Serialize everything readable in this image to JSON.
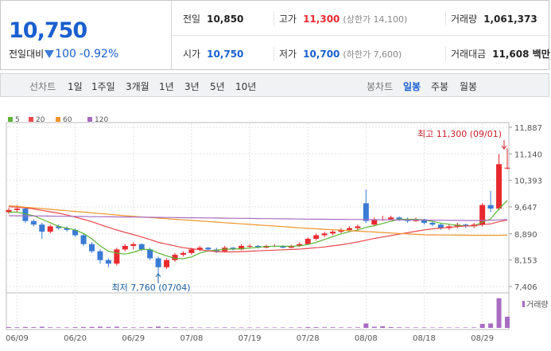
{
  "quote": {
    "price": "10,750",
    "change_label": "전일대비",
    "change": "100",
    "change_pct": "-0.92%"
  },
  "stats": [
    [
      {
        "label": "전일",
        "value": "10,850"
      },
      {
        "label": "고가",
        "value": "11,300",
        "note": "(상한가 14,100)"
      },
      {
        "label": "거래량",
        "value": "1,061,373"
      }
    ],
    [
      {
        "label": "시가",
        "value": "10,750"
      },
      {
        "label": "저가",
        "value": "10,700",
        "note": "(하한가 7,600)"
      },
      {
        "label": "거래대금",
        "value": "11,608 백만"
      }
    ]
  ],
  "tabs": {
    "left": [
      "선차트",
      "1일",
      "1주일",
      "3개월",
      "1년",
      "3년",
      "5년",
      "10년"
    ],
    "right": [
      "봉차트",
      "일봉",
      "주봉",
      "월봉"
    ],
    "selected": "일봉"
  },
  "chart_data": {
    "type": "candlestick",
    "categories": [
      null,
      "06/09",
      null,
      null,
      null,
      null,
      null,
      null,
      "06/20",
      null,
      null,
      null,
      null,
      null,
      null,
      "06/29",
      null,
      null,
      null,
      null,
      null,
      null,
      "07/08",
      null,
      null,
      null,
      null,
      null,
      null,
      "07/19",
      null,
      null,
      null,
      null,
      null,
      null,
      "07/28",
      null,
      null,
      null,
      null,
      null,
      null,
      "08/08",
      null,
      null,
      null,
      null,
      null,
      null,
      "08/18",
      null,
      null,
      null,
      null,
      null,
      null,
      "08/29",
      null,
      null,
      null
    ],
    "open": [
      9500,
      9560,
      9600,
      9250,
      9150,
      8950,
      9100,
      9050,
      9000,
      8850,
      8600,
      8400,
      8150,
      8050,
      8450,
      8550,
      8600,
      8450,
      8200,
      7950,
      8150,
      8300,
      8350,
      8450,
      8500,
      8450,
      8400,
      8500,
      8450,
      8550,
      8550,
      8500,
      8550,
      8550,
      8500,
      8550,
      8600,
      8750,
      8850,
      8900,
      8950,
      9000,
      9050,
      9750,
      9150,
      9300,
      9300,
      9350,
      9300,
      9250,
      9300,
      9200,
      9150,
      9050,
      9100,
      9150,
      9100,
      9150,
      9700,
      9600,
      10750
    ],
    "high": [
      9620,
      9700,
      9620,
      9300,
      9200,
      9150,
      9150,
      9100,
      9050,
      8900,
      8650,
      8450,
      8200,
      8500,
      8600,
      8650,
      8620,
      8500,
      8250,
      8200,
      8350,
      8400,
      8500,
      8550,
      8520,
      8500,
      8550,
      8520,
      8600,
      8600,
      8580,
      8580,
      8600,
      8570,
      8580,
      8650,
      8800,
      8900,
      8950,
      9000,
      9050,
      9100,
      9150,
      10140,
      9350,
      9400,
      9400,
      9380,
      9350,
      9350,
      9320,
      9250,
      9180,
      9150,
      9200,
      9180,
      9200,
      9750,
      10100,
      11140,
      11300
    ],
    "low": [
      9450,
      9500,
      9200,
      9100,
      8750,
      8900,
      9000,
      8950,
      8800,
      8550,
      8350,
      8050,
      7950,
      8000,
      8400,
      8450,
      8400,
      8150,
      7760,
      7900,
      8100,
      8250,
      8300,
      8400,
      8400,
      8350,
      8380,
      8420,
      8430,
      8500,
      8480,
      8480,
      8520,
      8480,
      8480,
      8520,
      8580,
      8700,
      8800,
      8850,
      8900,
      8950,
      9000,
      9200,
      9100,
      9250,
      9280,
      9250,
      9200,
      9230,
      9150,
      9100,
      9000,
      9000,
      9050,
      9050,
      9050,
      9100,
      9500,
      9550,
      10700
    ],
    "close": [
      9560,
      9600,
      9250,
      9150,
      8950,
      9100,
      9050,
      9000,
      8850,
      8600,
      8400,
      8150,
      8050,
      8450,
      8550,
      8600,
      8450,
      8200,
      7950,
      8150,
      8300,
      8350,
      8450,
      8500,
      8450,
      8400,
      8500,
      8450,
      8550,
      8550,
      8500,
      8550,
      8550,
      8500,
      8550,
      8600,
      8750,
      8850,
      8900,
      8950,
      9000,
      9050,
      9100,
      9250,
      9300,
      9300,
      9350,
      9300,
      9250,
      9300,
      9200,
      9150,
      9050,
      9100,
      9150,
      9100,
      9150,
      9700,
      9600,
      10850,
      10750
    ],
    "up_color": "#e8292e",
    "down_color": "#3a7bd5",
    "ma": [
      {
        "name": "5",
        "color": "#5db534",
        "values": [
          9500,
          9500,
          9450,
          9400,
          9300,
          9200,
          9100,
          9050,
          9000,
          8900,
          8750,
          8550,
          8400,
          8350,
          8320,
          8370,
          8450,
          8450,
          8350,
          8270,
          8200,
          8190,
          8240,
          8350,
          8410,
          8430,
          8460,
          8460,
          8470,
          8490,
          8510,
          8530,
          8540,
          8540,
          8540,
          8550,
          8590,
          8650,
          8730,
          8810,
          8890,
          8950,
          9000,
          9070,
          9120,
          9180,
          9240,
          9300,
          9300,
          9300,
          9280,
          9240,
          9190,
          9160,
          9130,
          9110,
          9110,
          9220,
          9310,
          9590,
          9830
        ]
      },
      {
        "name": "20",
        "color": "#e8474a",
        "values": [
          9650,
          9640,
          9620,
          9590,
          9550,
          9510,
          9470,
          9420,
          9360,
          9300,
          9230,
          9150,
          9070,
          9000,
          8930,
          8870,
          8800,
          8730,
          8650,
          8600,
          8550,
          8500,
          8470,
          8440,
          8410,
          8390,
          8380,
          8380,
          8390,
          8400,
          8410,
          8420,
          8430,
          8440,
          8450,
          8460,
          8480,
          8500,
          8520,
          8550,
          8580,
          8620,
          8660,
          8710,
          8760,
          8800,
          8840,
          8880,
          8920,
          8960,
          9000,
          9030,
          9050,
          9070,
          9090,
          9110,
          9120,
          9150,
          9170,
          9230,
          9280
        ]
      },
      {
        "name": "60",
        "color": "#f0952a",
        "values": [
          9680,
          9660,
          9640,
          9620,
          9600,
          9580,
          9560,
          9540,
          9520,
          9500,
          9480,
          9460,
          9440,
          9420,
          9400,
          9380,
          9364,
          9348,
          9332,
          9316,
          9300,
          9284,
          9268,
          9252,
          9236,
          9220,
          9204,
          9188,
          9172,
          9156,
          9140,
          9124,
          9108,
          9092,
          9076,
          9060,
          9044,
          9031,
          9018,
          9005,
          8992,
          8979,
          8966,
          8953,
          8940,
          8927,
          8914,
          8901,
          8888,
          8875,
          8862,
          8860,
          8858,
          8856,
          8854,
          8852,
          8850,
          8850,
          8850,
          8850,
          8852
        ]
      },
      {
        "name": "120",
        "color": "#a86cc1",
        "values": [
          9400,
          9398,
          9395,
          9393,
          9390,
          9388,
          9385,
          9382,
          9380,
          9377,
          9374,
          9372,
          9369,
          9366,
          9364,
          9361,
          9358,
          9356,
          9353,
          9350,
          9348,
          9345,
          9342,
          9340,
          9337,
          9334,
          9331,
          9329,
          9326,
          9323,
          9320,
          9318,
          9315,
          9312,
          9310,
          9307,
          9304,
          9302,
          9300,
          9298,
          9296,
          9294,
          9292,
          9290,
          9288,
          9286,
          9284,
          9282,
          9280,
          9278,
          9276,
          9274,
          9272,
          9270,
          9268,
          9266,
          9266,
          9268,
          9272,
          9282,
          9292
        ]
      }
    ],
    "volume": {
      "name": "거래량",
      "color": "#a86cc1",
      "ylim": [
        0,
        3000000
      ],
      "values": [
        80000,
        60000,
        90000,
        70000,
        110000,
        60000,
        50000,
        50000,
        70000,
        90000,
        100000,
        120000,
        90000,
        110000,
        60000,
        50000,
        60000,
        80000,
        130000,
        70000,
        60000,
        50000,
        50000,
        40000,
        40000,
        40000,
        50000,
        40000,
        40000,
        40000,
        40000,
        40000,
        40000,
        40000,
        40000,
        50000,
        80000,
        70000,
        60000,
        60000,
        50000,
        50000,
        60000,
        420000,
        110000,
        160000,
        80000,
        60000,
        50000,
        50000,
        50000,
        40000,
        50000,
        40000,
        40000,
        40000,
        50000,
        380000,
        420000,
        2800000,
        1061373
      ]
    },
    "ylim": [
      7406,
      11887
    ],
    "yticks": [
      {
        "value": 7406,
        "label": "7,406"
      },
      {
        "value": 8153,
        "label": "8,153"
      },
      {
        "value": 8890,
        "label": "8,890"
      },
      {
        "value": 9647,
        "label": "9,647"
      },
      {
        "value": 10393,
        "label": "10,393"
      },
      {
        "value": 11140,
        "label": "11,140"
      },
      {
        "value": 11887,
        "label": "11,887"
      }
    ],
    "annotations": [
      "최고 11,300 (09/01)",
      "최저 7,760 (07/04)"
    ],
    "grid": true
  }
}
